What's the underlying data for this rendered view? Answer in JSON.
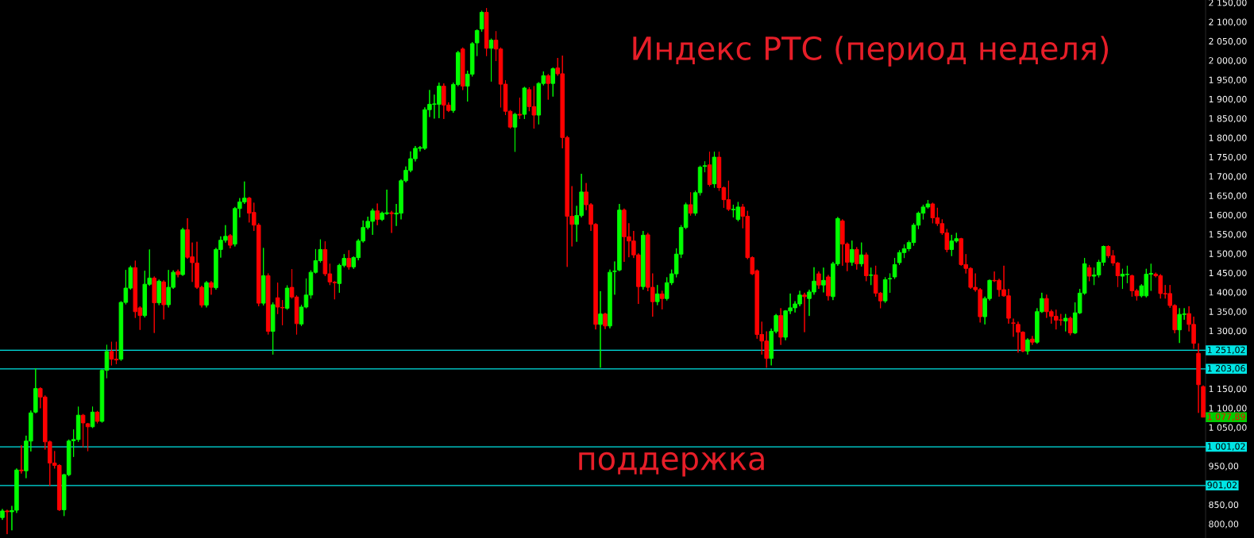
{
  "chart_data": {
    "type": "candlestick",
    "title": "Индекс РТС (период неделя)",
    "categories": [
      null,
      null,
      null,
      null,
      null,
      null,
      null,
      null,
      null,
      null,
      null,
      null,
      null,
      null,
      null,
      null,
      null,
      null,
      null,
      null,
      null,
      null,
      null,
      null,
      null,
      null,
      null,
      null,
      null,
      null,
      null,
      null,
      null,
      null,
      null,
      null,
      null,
      null,
      null,
      null,
      null,
      null,
      null,
      null,
      null,
      null,
      null,
      null,
      null,
      null,
      null,
      null,
      null,
      null,
      null,
      null,
      null,
      null,
      null,
      null,
      null,
      null,
      null,
      null,
      null,
      null,
      null,
      null,
      null,
      null,
      null,
      null,
      null,
      null,
      null,
      null,
      null,
      null,
      null,
      null,
      null,
      null,
      null,
      null,
      null,
      null,
      null,
      null,
      null,
      null,
      null,
      null,
      null,
      null,
      null,
      null,
      null,
      null,
      null,
      null,
      null,
      null,
      null,
      null,
      null,
      null,
      null,
      null,
      null,
      null,
      null,
      null,
      null,
      null,
      null,
      null,
      null,
      null,
      null,
      null,
      null,
      null,
      null,
      null,
      null,
      null,
      null,
      null,
      null,
      null,
      null,
      null,
      null,
      null,
      null,
      null,
      null,
      null,
      null,
      null,
      null,
      null,
      null,
      null,
      null,
      null,
      null,
      null,
      null,
      null,
      null,
      null,
      null,
      null,
      null,
      null,
      null,
      null,
      null,
      null,
      null,
      null,
      null,
      null,
      null,
      null,
      null,
      null,
      null,
      null,
      null,
      null,
      null,
      null,
      null,
      null,
      null,
      null,
      null,
      null,
      null,
      null,
      null,
      null,
      null,
      null,
      null,
      null,
      null,
      null,
      null,
      null,
      null,
      null,
      null,
      null,
      null,
      null,
      null,
      null,
      null,
      null,
      null,
      null,
      null,
      null,
      null,
      null,
      null,
      null,
      null,
      null,
      null,
      null,
      null,
      null,
      null,
      null,
      null,
      null,
      null,
      null,
      null,
      null,
      null,
      null,
      null,
      null,
      null,
      null,
      null,
      null,
      null,
      null,
      null,
      null,
      null,
      null,
      null,
      null,
      null,
      null,
      null,
      null,
      null,
      null,
      null,
      null,
      null,
      null,
      null,
      null,
      null,
      null
    ],
    "ohlc": [
      [
        818,
        840,
        812,
        835
      ],
      [
        835,
        838,
        775,
        833
      ],
      [
        833,
        848,
        785,
        836
      ],
      [
        837,
        945,
        830,
        941
      ],
      [
        941,
        1005,
        932,
        939
      ],
      [
        939,
        1030,
        920,
        1016
      ],
      [
        1016,
        1095,
        989,
        1089
      ],
      [
        1091,
        1204,
        1088,
        1152
      ],
      [
        1152,
        1155,
        1101,
        1130
      ],
      [
        1130,
        1134,
        994,
        1014
      ],
      [
        1014,
        1017,
        900,
        959
      ],
      [
        959,
        990,
        945,
        953
      ],
      [
        953,
        956,
        835,
        838
      ],
      [
        838,
        931,
        822,
        929
      ],
      [
        929,
        1020,
        925,
        1016
      ],
      [
        1017,
        1046,
        975,
        1020
      ],
      [
        1020,
        1105,
        1014,
        1083
      ],
      [
        1083,
        1086,
        1000,
        1063
      ],
      [
        1061,
        1063,
        990,
        1053
      ],
      [
        1053,
        1105,
        1050,
        1091
      ],
      [
        1091,
        1094,
        1062,
        1067
      ],
      [
        1067,
        1202,
        1064,
        1199
      ],
      [
        1199,
        1265,
        1179,
        1248
      ],
      [
        1248,
        1273,
        1212,
        1228
      ],
      [
        1228,
        1273,
        1215,
        1226
      ],
      [
        1228,
        1378,
        1224,
        1375
      ],
      [
        1375,
        1459,
        1370,
        1412
      ],
      [
        1412,
        1470,
        1408,
        1465
      ],
      [
        1465,
        1483,
        1335,
        1351
      ],
      [
        1361,
        1365,
        1304,
        1341
      ],
      [
        1341,
        1457,
        1336,
        1422
      ],
      [
        1422,
        1512,
        1418,
        1438
      ],
      [
        1438,
        1442,
        1296,
        1374
      ],
      [
        1374,
        1434,
        1368,
        1430
      ],
      [
        1428,
        1432,
        1331,
        1369
      ],
      [
        1369,
        1459,
        1362,
        1414
      ],
      [
        1414,
        1458,
        1410,
        1453
      ],
      [
        1455,
        1460,
        1440,
        1447
      ],
      [
        1447,
        1568,
        1444,
        1563
      ],
      [
        1563,
        1593,
        1488,
        1492
      ],
      [
        1493,
        1530,
        1428,
        1478
      ],
      [
        1477,
        1532,
        1410,
        1414
      ],
      [
        1414,
        1418,
        1362,
        1368
      ],
      [
        1368,
        1430,
        1362,
        1426
      ],
      [
        1426,
        1430,
        1395,
        1414
      ],
      [
        1413,
        1516,
        1408,
        1512
      ],
      [
        1512,
        1546,
        1491,
        1536
      ],
      [
        1536,
        1575,
        1530,
        1546
      ],
      [
        1548,
        1552,
        1515,
        1523
      ],
      [
        1526,
        1622,
        1520,
        1618
      ],
      [
        1618,
        1645,
        1595,
        1635
      ],
      [
        1635,
        1688,
        1630,
        1645
      ],
      [
        1645,
        1648,
        1582,
        1606
      ],
      [
        1608,
        1633,
        1560,
        1575
      ],
      [
        1575,
        1580,
        1365,
        1373
      ],
      [
        1373,
        1516,
        1367,
        1444
      ],
      [
        1444,
        1450,
        1292,
        1300
      ],
      [
        1300,
        1375,
        1240,
        1369
      ],
      [
        1387,
        1426,
        1345,
        1363
      ],
      [
        1362,
        1381,
        1316,
        1361
      ],
      [
        1360,
        1419,
        1356,
        1412
      ],
      [
        1414,
        1461,
        1385,
        1389
      ],
      [
        1389,
        1393,
        1292,
        1320
      ],
      [
        1319,
        1369,
        1314,
        1363
      ],
      [
        1363,
        1437,
        1360,
        1394
      ],
      [
        1394,
        1458,
        1385,
        1453
      ],
      [
        1453,
        1513,
        1450,
        1483
      ],
      [
        1483,
        1538,
        1478,
        1512
      ],
      [
        1512,
        1533,
        1443,
        1449
      ],
      [
        1449,
        1475,
        1420,
        1428
      ],
      [
        1427,
        1430,
        1383,
        1426
      ],
      [
        1424,
        1475,
        1400,
        1471
      ],
      [
        1471,
        1500,
        1466,
        1489
      ],
      [
        1489,
        1510,
        1460,
        1467
      ],
      [
        1467,
        1494,
        1462,
        1491
      ],
      [
        1491,
        1539,
        1484,
        1534
      ],
      [
        1534,
        1587,
        1530,
        1569
      ],
      [
        1569,
        1597,
        1564,
        1585
      ],
      [
        1585,
        1618,
        1550,
        1612
      ],
      [
        1612,
        1631,
        1575,
        1590
      ],
      [
        1590,
        1610,
        1586,
        1606
      ],
      [
        1605,
        1667,
        1602,
        1607
      ],
      [
        1607,
        1612,
        1555,
        1605
      ],
      [
        1604,
        1630,
        1573,
        1606
      ],
      [
        1606,
        1694,
        1590,
        1690
      ],
      [
        1690,
        1727,
        1686,
        1717
      ],
      [
        1717,
        1766,
        1712,
        1747
      ],
      [
        1747,
        1780,
        1740,
        1774
      ],
      [
        1774,
        1780,
        1766,
        1776
      ],
      [
        1774,
        1880,
        1770,
        1874
      ],
      [
        1874,
        1925,
        1855,
        1888
      ],
      [
        1888,
        1913,
        1851,
        1889
      ],
      [
        1888,
        1944,
        1852,
        1935
      ],
      [
        1935,
        1942,
        1850,
        1886
      ],
      [
        1886,
        1893,
        1868,
        1872
      ],
      [
        1872,
        1944,
        1866,
        1939
      ],
      [
        1939,
        2026,
        1935,
        2022
      ],
      [
        2031,
        2035,
        1925,
        1935
      ],
      [
        1935,
        1975,
        1895,
        1966
      ],
      [
        1966,
        2049,
        1960,
        2045
      ],
      [
        2047,
        2082,
        2013,
        2079
      ],
      [
        2083,
        2130,
        2076,
        2126
      ],
      [
        2126,
        2137,
        2013,
        2033
      ],
      [
        2033,
        2058,
        1947,
        2054
      ],
      [
        2054,
        2077,
        2000,
        2031
      ],
      [
        2031,
        2035,
        1880,
        1940
      ],
      [
        1940,
        1950,
        1860,
        1870
      ],
      [
        1870,
        1873,
        1825,
        1829
      ],
      [
        1829,
        1866,
        1765,
        1862
      ],
      [
        1862,
        1905,
        1850,
        1860
      ],
      [
        1862,
        1933,
        1850,
        1930
      ],
      [
        1926,
        1932,
        1870,
        1882
      ],
      [
        1882,
        1935,
        1825,
        1860
      ],
      [
        1860,
        1945,
        1836,
        1942
      ],
      [
        1942,
        1973,
        1937,
        1962
      ],
      [
        1962,
        1966,
        1900,
        1942
      ],
      [
        1942,
        1983,
        1908,
        1980
      ],
      [
        1982,
        2008,
        1962,
        1967
      ],
      [
        1967,
        2014,
        1774,
        1802
      ],
      [
        1802,
        1806,
        1467,
        1598
      ],
      [
        1598,
        1676,
        1520,
        1577
      ],
      [
        1577,
        1625,
        1532,
        1600
      ],
      [
        1600,
        1708,
        1595,
        1661
      ],
      [
        1661,
        1684,
        1614,
        1628
      ],
      [
        1628,
        1632,
        1560,
        1577
      ],
      [
        1577,
        1580,
        1305,
        1318
      ],
      [
        1318,
        1404,
        1206,
        1345
      ],
      [
        1345,
        1348,
        1306,
        1314
      ],
      [
        1314,
        1460,
        1308,
        1453
      ],
      [
        1455,
        1481,
        1395,
        1456
      ],
      [
        1459,
        1630,
        1456,
        1614
      ],
      [
        1614,
        1618,
        1480,
        1545
      ],
      [
        1545,
        1580,
        1492,
        1534
      ],
      [
        1534,
        1560,
        1490,
        1498
      ],
      [
        1498,
        1502,
        1371,
        1416
      ],
      [
        1416,
        1560,
        1408,
        1549
      ],
      [
        1550,
        1555,
        1404,
        1414
      ],
      [
        1414,
        1450,
        1338,
        1377
      ],
      [
        1377,
        1420,
        1368,
        1397
      ],
      [
        1397,
        1405,
        1357,
        1385
      ],
      [
        1385,
        1440,
        1380,
        1426
      ],
      [
        1426,
        1460,
        1420,
        1449
      ],
      [
        1449,
        1515,
        1440,
        1500
      ],
      [
        1500,
        1575,
        1490,
        1569
      ],
      [
        1569,
        1633,
        1565,
        1628
      ],
      [
        1628,
        1660,
        1600,
        1606
      ],
      [
        1606,
        1664,
        1600,
        1659
      ],
      [
        1659,
        1729,
        1652,
        1725
      ],
      [
        1727,
        1740,
        1712,
        1729
      ],
      [
        1731,
        1765,
        1675,
        1680
      ],
      [
        1682,
        1765,
        1672,
        1751
      ],
      [
        1751,
        1765,
        1664,
        1672
      ],
      [
        1672,
        1675,
        1620,
        1641
      ],
      [
        1641,
        1690,
        1612,
        1616
      ],
      [
        1615,
        1628,
        1595,
        1616
      ],
      [
        1590,
        1635,
        1585,
        1622
      ],
      [
        1622,
        1630,
        1567,
        1598
      ],
      [
        1598,
        1612,
        1487,
        1491
      ],
      [
        1491,
        1494,
        1446,
        1449
      ],
      [
        1457,
        1460,
        1281,
        1292
      ],
      [
        1292,
        1325,
        1240,
        1275
      ],
      [
        1275,
        1300,
        1206,
        1230
      ],
      [
        1230,
        1307,
        1212,
        1300
      ],
      [
        1300,
        1345,
        1295,
        1341
      ],
      [
        1341,
        1360,
        1265,
        1285
      ],
      [
        1285,
        1355,
        1277,
        1353
      ],
      [
        1353,
        1398,
        1345,
        1361
      ],
      [
        1361,
        1378,
        1349,
        1371
      ],
      [
        1371,
        1405,
        1365,
        1394
      ],
      [
        1394,
        1400,
        1298,
        1390
      ],
      [
        1385,
        1408,
        1340,
        1402
      ],
      [
        1402,
        1466,
        1395,
        1430
      ],
      [
        1449,
        1455,
        1410,
        1420
      ],
      [
        1420,
        1465,
        1401,
        1432
      ],
      [
        1441,
        1446,
        1380,
        1392
      ],
      [
        1390,
        1480,
        1381,
        1475
      ],
      [
        1475,
        1596,
        1470,
        1592
      ],
      [
        1586,
        1590,
        1470,
        1526
      ],
      [
        1526,
        1530,
        1456,
        1479
      ],
      [
        1479,
        1535,
        1470,
        1512
      ],
      [
        1512,
        1518,
        1460,
        1475
      ],
      [
        1475,
        1530,
        1468,
        1498
      ],
      [
        1498,
        1504,
        1430,
        1444
      ],
      [
        1445,
        1465,
        1420,
        1446
      ],
      [
        1446,
        1470,
        1390,
        1399
      ],
      [
        1399,
        1402,
        1360,
        1379
      ],
      [
        1379,
        1440,
        1374,
        1434
      ],
      [
        1436,
        1450,
        1400,
        1437
      ],
      [
        1441,
        1490,
        1436,
        1473
      ],
      [
        1478,
        1510,
        1472,
        1504
      ],
      [
        1504,
        1525,
        1490,
        1514
      ],
      [
        1514,
        1535,
        1508,
        1530
      ],
      [
        1530,
        1580,
        1522,
        1575
      ],
      [
        1575,
        1610,
        1565,
        1606
      ],
      [
        1606,
        1628,
        1590,
        1622
      ],
      [
        1622,
        1640,
        1618,
        1630
      ],
      [
        1630,
        1633,
        1580,
        1594
      ],
      [
        1594,
        1620,
        1573,
        1579
      ],
      [
        1579,
        1590,
        1550,
        1555
      ],
      [
        1555,
        1565,
        1505,
        1512
      ],
      [
        1512,
        1550,
        1495,
        1534
      ],
      [
        1534,
        1555,
        1530,
        1540
      ],
      [
        1540,
        1542,
        1470,
        1473
      ],
      [
        1473,
        1500,
        1450,
        1463
      ],
      [
        1463,
        1466,
        1410,
        1414
      ],
      [
        1414,
        1450,
        1403,
        1408
      ],
      [
        1408,
        1412,
        1323,
        1338
      ],
      [
        1338,
        1390,
        1318,
        1385
      ],
      [
        1385,
        1434,
        1380,
        1432
      ],
      [
        1432,
        1455,
        1428,
        1431
      ],
      [
        1432,
        1436,
        1390,
        1408
      ],
      [
        1408,
        1470,
        1390,
        1392
      ],
      [
        1392,
        1410,
        1320,
        1334
      ],
      [
        1322,
        1333,
        1286,
        1321
      ],
      [
        1318,
        1325,
        1245,
        1298
      ],
      [
        1298,
        1300,
        1246,
        1249
      ],
      [
        1249,
        1282,
        1240,
        1278
      ],
      [
        1280,
        1288,
        1265,
        1272
      ],
      [
        1272,
        1360,
        1268,
        1351
      ],
      [
        1351,
        1400,
        1348,
        1385
      ],
      [
        1385,
        1395,
        1335,
        1351
      ],
      [
        1351,
        1356,
        1320,
        1339
      ],
      [
        1339,
        1356,
        1305,
        1329
      ],
      [
        1330,
        1345,
        1315,
        1329
      ],
      [
        1327,
        1345,
        1300,
        1334
      ],
      [
        1334,
        1338,
        1290,
        1296
      ],
      [
        1296,
        1375,
        1293,
        1348
      ],
      [
        1348,
        1410,
        1345,
        1399
      ],
      [
        1399,
        1490,
        1395,
        1475
      ],
      [
        1465,
        1472,
        1430,
        1443
      ],
      [
        1443,
        1465,
        1420,
        1446
      ],
      [
        1446,
        1485,
        1440,
        1479
      ],
      [
        1479,
        1522,
        1470,
        1520
      ],
      [
        1520,
        1523,
        1490,
        1496
      ],
      [
        1496,
        1510,
        1470,
        1477
      ],
      [
        1477,
        1480,
        1415,
        1444
      ],
      [
        1443,
        1462,
        1410,
        1448
      ],
      [
        1447,
        1470,
        1425,
        1448
      ],
      [
        1444,
        1447,
        1390,
        1405
      ],
      [
        1405,
        1410,
        1380,
        1392
      ],
      [
        1392,
        1422,
        1388,
        1418
      ],
      [
        1392,
        1462,
        1388,
        1448
      ],
      [
        1448,
        1475,
        1405,
        1450
      ],
      [
        1448,
        1452,
        1440,
        1444
      ],
      [
        1444,
        1448,
        1385,
        1398
      ],
      [
        1398,
        1420,
        1385,
        1397
      ],
      [
        1398,
        1420,
        1361,
        1367
      ],
      [
        1367,
        1370,
        1295,
        1304
      ],
      [
        1304,
        1360,
        1270,
        1344
      ],
      [
        1344,
        1360,
        1330,
        1345
      ],
      [
        1346,
        1365,
        1300,
        1318
      ],
      [
        1318,
        1338,
        1255,
        1269
      ],
      [
        1243,
        1269,
        1089,
        1162
      ],
      [
        1157,
        1160,
        1077.89,
        1077.89
      ]
    ],
    "colors": [
      "#00ff00",
      "#ff0000",
      "#00ff00",
      "#00ff00",
      "#ff0000",
      "#00ff00",
      "#00ff00",
      "#00ff00",
      "#ff0000",
      "#ff0000",
      "#ff0000",
      "#ff0000",
      "#ff0000",
      "#00ff00",
      "#00ff00",
      "#00ff00",
      "#00ff00",
      "#ff0000",
      "#ff0000",
      "#00ff00",
      "#ff0000",
      "#00ff00",
      "#00ff00",
      "#ff0000",
      "#ff0000",
      "#00ff00",
      "#00ff00",
      "#00ff00",
      "#ff0000",
      "#ff0000",
      "#00ff00",
      "#00ff00",
      "#ff0000",
      "#00ff00",
      "#ff0000",
      "#00ff00",
      "#00ff00",
      "#ff0000",
      "#00ff00",
      "#ff0000",
      "#ff0000",
      "#ff0000",
      "#ff0000",
      "#00ff00",
      "#ff0000",
      "#00ff00",
      "#00ff00",
      "#00ff00",
      "#ff0000",
      "#00ff00",
      "#00ff00",
      "#00ff00",
      "#ff0000",
      "#ff0000",
      "#ff0000",
      "#00ff00",
      "#ff0000",
      "#00ff00",
      "#ff0000",
      "#ff0000",
      "#00ff00",
      "#ff0000",
      "#ff0000",
      "#00ff00",
      "#00ff00",
      "#00ff00",
      "#00ff00",
      "#00ff00",
      "#ff0000",
      "#ff0000",
      "#ff0000",
      "#00ff00",
      "#00ff00",
      "#ff0000",
      "#00ff00",
      "#00ff00",
      "#00ff00",
      "#00ff00",
      "#00ff00",
      "#ff0000",
      "#00ff00",
      "#00ff00",
      "#ff0000",
      "#00ff00",
      "#00ff00",
      "#00ff00",
      "#00ff00",
      "#00ff00",
      "#00ff00",
      "#00ff00",
      "#00ff00",
      "#00ff00",
      "#00ff00",
      "#ff0000",
      "#ff0000",
      "#00ff00",
      "#00ff00",
      "#ff0000",
      "#00ff00",
      "#00ff00",
      "#00ff00",
      "#00ff00",
      "#ff0000",
      "#00ff00",
      "#ff0000",
      "#ff0000",
      "#ff0000",
      "#ff0000",
      "#00ff00",
      "#ff0000",
      "#00ff00",
      "#ff0000",
      "#ff0000",
      "#00ff00",
      "#00ff00",
      "#ff0000",
      "#00ff00",
      "#ff0000",
      "#ff0000",
      "#ff0000",
      "#ff0000",
      "#00ff00",
      "#00ff00",
      "#ff0000",
      "#ff0000",
      "#ff0000",
      "#00ff00",
      "#ff0000",
      "#00ff00",
      "#00ff00",
      "#00ff00",
      "#ff0000",
      "#ff0000",
      "#ff0000",
      "#ff0000",
      "#00ff00",
      "#ff0000",
      "#ff0000",
      "#00ff00",
      "#ff0000",
      "#00ff00",
      "#00ff00",
      "#00ff00",
      "#00ff00",
      "#00ff00",
      "#ff0000",
      "#00ff00",
      "#00ff00",
      "#00ff00",
      "#ff0000",
      "#00ff00",
      "#ff0000",
      "#ff0000",
      "#ff0000",
      "#00ff00",
      "#00ff00",
      "#ff0000",
      "#ff0000",
      "#ff0000",
      "#ff0000",
      "#ff0000",
      "#ff0000",
      "#00ff00",
      "#00ff00",
      "#ff0000",
      "#00ff00",
      "#00ff00",
      "#00ff00",
      "#00ff00",
      "#ff0000",
      "#00ff00",
      "#00ff00",
      "#ff0000",
      "#00ff00",
      "#ff0000",
      "#00ff00",
      "#00ff00",
      "#ff0000",
      "#ff0000",
      "#00ff00",
      "#ff0000",
      "#00ff00",
      "#ff0000",
      "#00ff00",
      "#ff0000",
      "#ff0000",
      "#00ff00",
      "#00ff00",
      "#00ff00",
      "#00ff00",
      "#00ff00",
      "#00ff00",
      "#00ff00",
      "#00ff00",
      "#00ff00",
      "#00ff00",
      "#ff0000",
      "#ff0000",
      "#ff0000",
      "#ff0000",
      "#00ff00",
      "#00ff00",
      "#ff0000",
      "#ff0000",
      "#ff0000",
      "#ff0000",
      "#ff0000",
      "#00ff00",
      "#00ff00",
      "#ff0000",
      "#ff0000",
      "#ff0000",
      "#ff0000",
      "#ff0000",
      "#ff0000",
      "#ff0000",
      "#00ff00",
      "#ff0000",
      "#00ff00",
      "#00ff00",
      "#ff0000",
      "#ff0000",
      "#ff0000",
      "#ff0000",
      "#00ff00",
      "#ff0000",
      "#00ff00",
      "#00ff00",
      "#00ff00",
      "#ff0000",
      "#00ff00",
      "#00ff00",
      "#00ff00",
      "#ff0000",
      "#ff0000",
      "#ff0000",
      "#00ff00",
      "#00ff00",
      "#ff0000",
      "#ff0000",
      "#00ff00",
      "#00ff00",
      "#00ff00",
      "#ff0000",
      "#ff0000",
      "#ff0000",
      "#ff0000",
      "#ff0000",
      "#00ff00",
      "#00ff00",
      "#ff0000",
      "#ff0000",
      "#ff0000",
      "#ff0000"
    ],
    "ylim": [
      765,
      2158
    ],
    "yticks": [
      {
        "value": 800,
        "label": "800,00"
      },
      {
        "value": 850,
        "label": "850,00"
      },
      {
        "value": 950,
        "label": "950,00"
      },
      {
        "value": 1050,
        "label": "1 050,00"
      },
      {
        "value": 1100,
        "label": "1 100,00"
      },
      {
        "value": 1150,
        "label": "1 150,00"
      },
      {
        "value": 1300,
        "label": "1 300,00"
      },
      {
        "value": 1350,
        "label": "1 350,00"
      },
      {
        "value": 1400,
        "label": "1 400,00"
      },
      {
        "value": 1450,
        "label": "1 450,00"
      },
      {
        "value": 1500,
        "label": "1 500,00"
      },
      {
        "value": 1550,
        "label": "1 550,00"
      },
      {
        "value": 1600,
        "label": "1 600,00"
      },
      {
        "value": 1650,
        "label": "1 650,00"
      },
      {
        "value": 1700,
        "label": "1 700,00"
      },
      {
        "value": 1750,
        "label": "1 750,00"
      },
      {
        "value": 1800,
        "label": "1 800,00"
      },
      {
        "value": 1850,
        "label": "1 850,00"
      },
      {
        "value": 1900,
        "label": "1 900,00"
      },
      {
        "value": 1950,
        "label": "1 950,00"
      },
      {
        "value": 2000,
        "label": "2 000,00"
      },
      {
        "value": 2050,
        "label": "2 050,00"
      },
      {
        "value": 2100,
        "label": "2 100,00"
      },
      {
        "value": 2150,
        "label": "2 150,00"
      }
    ],
    "ref_lines": [
      {
        "axis": "y",
        "value": 1251.02,
        "label": "1 251,02",
        "color": "#00e5e5"
      },
      {
        "axis": "y",
        "value": 1203.06,
        "label": "1 203,06",
        "color": "#00e5e5"
      },
      {
        "axis": "y",
        "value": 1001.02,
        "label": "1 001,02",
        "color": "#00e5e5"
      },
      {
        "axis": "y",
        "value": 901.02,
        "label": "901,02",
        "color": "#00e5e5"
      }
    ],
    "annotations": [
      "поддержка",
      "1 077,89"
    ]
  }
}
